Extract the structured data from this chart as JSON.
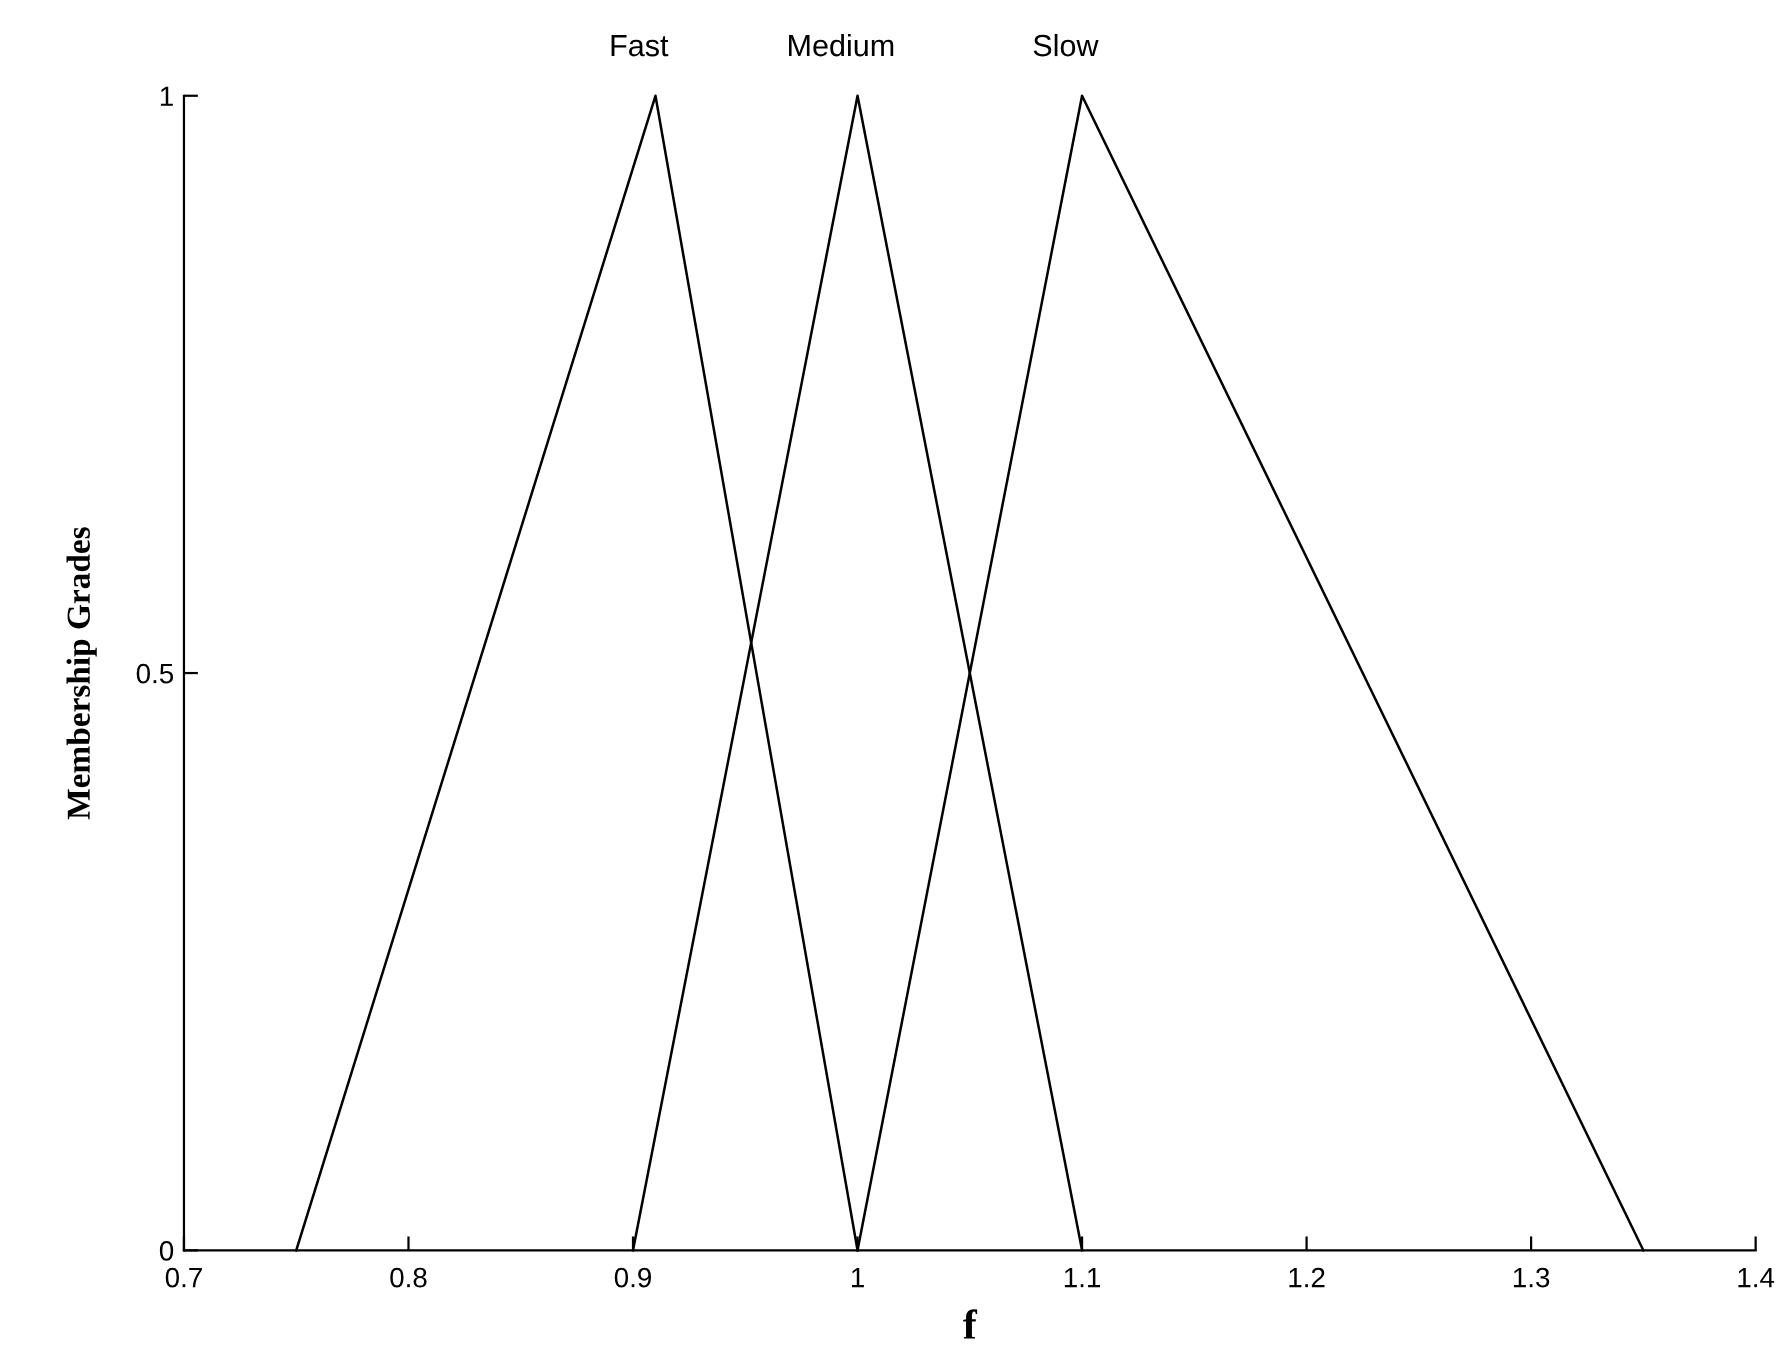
{
  "chart_data": {
    "type": "line",
    "xlabel": "f",
    "ylabel": "Membership Grades",
    "xlim": [
      0.7,
      1.4
    ],
    "xticks": [
      0.7,
      0.8,
      0.9,
      1,
      1.1,
      1.2,
      1.3,
      1.4
    ],
    "ylim": [
      0,
      1
    ],
    "yticks": [
      0,
      0.5,
      1
    ],
    "grid": false,
    "marker": "none",
    "line_style": "solid",
    "series": [
      {
        "name": "Fast",
        "color": "#000000",
        "x": [
          0.75,
          0.91,
          1.0
        ],
        "values": [
          0,
          1,
          0
        ]
      },
      {
        "name": "Medium",
        "color": "#000000",
        "x": [
          0.9,
          1.0,
          1.1
        ],
        "values": [
          0,
          1,
          0
        ]
      },
      {
        "name": "Slow",
        "color": "#000000",
        "x": [
          1.0,
          1.1,
          1.35
        ],
        "values": [
          0,
          1,
          0
        ]
      }
    ]
  }
}
